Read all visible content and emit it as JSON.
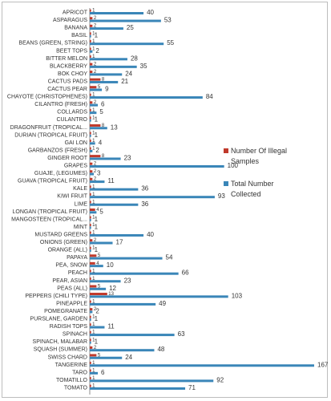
{
  "chart_data": {
    "type": "bar",
    "orientation": "horizontal",
    "grid": false,
    "legend_position": "right",
    "categories": [
      "APRICOT",
      "ASPARAGUS",
      "BANANA",
      "BASIL",
      "BEANS (GREEN, STRING)",
      "BEET TOPS",
      "BITTER MELON",
      "BLACKBERRY",
      "BOK CHOY",
      "CACTUS PADS",
      "CACTUS PEAR",
      "CHAYOTE (CHRISTOPHENES)",
      "CILANTRO (FRESH)",
      "COLLARDS",
      "CULANTRO",
      "DRAGONFRUIT (TROPICAL...",
      "DURIAN (TROPICAL FRUIT)",
      "GAI LON",
      "GARBANZOS (FRESH)",
      "GINGER ROOT",
      "GRAPES",
      "GUAJE, (LEGUMES)",
      "GUAVA (TROPICAL FRUIT)",
      "KALE",
      "KIWI FRUIT",
      "LIME",
      "LONGAN (TROPICAL FRUIT)",
      "MANGOSTEEN (TROPICAL...",
      "MINT",
      "MUSTARD GREENS",
      "ONIONS (GREEN)",
      "ORANGE (ALL)",
      "PAPAYA",
      "PEA, SNOW",
      "PEACH",
      "PEAR, ASIAN",
      "PEAS (ALL)",
      "PEPPERS (CHILI TYPE)",
      "PINEAPPLE",
      "POMEGRANATE",
      "PURSLANE, GARDEN",
      "RADISH TOPS",
      "SPINACH",
      "SPINACH, MALABAR",
      "SQUASH (SUMMER)",
      "SWISS CHARD",
      "TANGERINE",
      "TARO",
      "TOMATILLO",
      "TOMATO"
    ],
    "series": [
      {
        "name": "Number Of Illegal Samples",
        "color": "#c0392b",
        "values": [
          1,
          2,
          2,
          1,
          1,
          1,
          1,
          2,
          2,
          8,
          5,
          1,
          2,
          1,
          1,
          8,
          1,
          1,
          1,
          8,
          2,
          2,
          2,
          1,
          1,
          1,
          4,
          1,
          1,
          1,
          2,
          1,
          5,
          4,
          1,
          1,
          5,
          13,
          1,
          2,
          1,
          1,
          1,
          1,
          2,
          5,
          1,
          1,
          1,
          1
        ]
      },
      {
        "name": "Total Number Collected",
        "color": "#3a86b8",
        "values": [
          40,
          53,
          25,
          1,
          55,
          2,
          28,
          35,
          24,
          21,
          9,
          84,
          6,
          5,
          1,
          13,
          1,
          4,
          2,
          23,
          100,
          3,
          11,
          36,
          93,
          36,
          5,
          1,
          1,
          40,
          17,
          1,
          54,
          10,
          66,
          23,
          12,
          103,
          49,
          2,
          1,
          11,
          63,
          1,
          48,
          24,
          167,
          6,
          92,
          71
        ]
      }
    ],
    "xlim": [
      0,
      167
    ]
  }
}
